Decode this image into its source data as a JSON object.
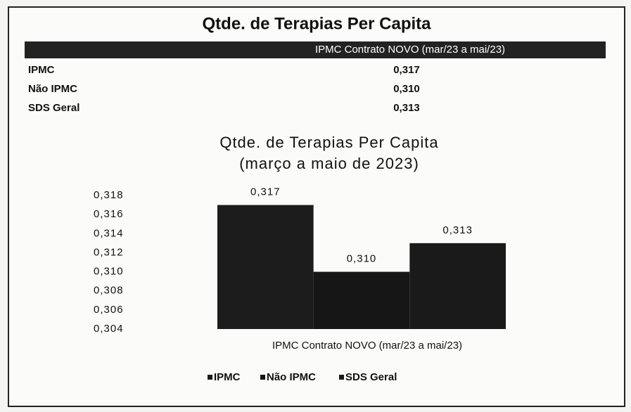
{
  "header": {
    "title": "Qtde. de Terapias Per Capita"
  },
  "table": {
    "header": "IPMC Contrato NOVO (mar/23 a mai/23)",
    "rows": [
      [
        "IPMC",
        "0,317"
      ],
      [
        "Não IPMC",
        "0,310"
      ],
      [
        "SDS Geral",
        "0,313"
      ]
    ]
  },
  "chart_data": {
    "type": "bar",
    "title": [
      "Qtde. de Terapias Per Capita",
      "(março a maio de 2023)"
    ],
    "categories": [
      "IPMC Contrato NOVO (mar/23 a mai/23)"
    ],
    "series": [
      {
        "name": "IPMC",
        "color": "#1c1c1c",
        "values": [
          0.317
        ],
        "value_labels": [
          "0,317"
        ]
      },
      {
        "name": "Não IPMC",
        "color": "#161616",
        "values": [
          0.31
        ],
        "value_labels": [
          "0,310"
        ]
      },
      {
        "name": "SDS Geral",
        "color": "#1a1a1a",
        "values": [
          0.313
        ],
        "value_labels": [
          "0,313"
        ]
      }
    ],
    "ylim": [
      0.304,
      0.318
    ],
    "yticks": [
      {
        "value": 0.304,
        "label": "0,304"
      },
      {
        "value": 0.306,
        "label": "0,306"
      },
      {
        "value": 0.308,
        "label": "0,308"
      },
      {
        "value": 0.31,
        "label": "0,310"
      },
      {
        "value": 0.312,
        "label": "0,312"
      },
      {
        "value": 0.314,
        "label": "0,314"
      },
      {
        "value": 0.316,
        "label": "0,316"
      },
      {
        "value": 0.318,
        "label": "0,318"
      }
    ],
    "grid": false,
    "legend": "bottom"
  }
}
